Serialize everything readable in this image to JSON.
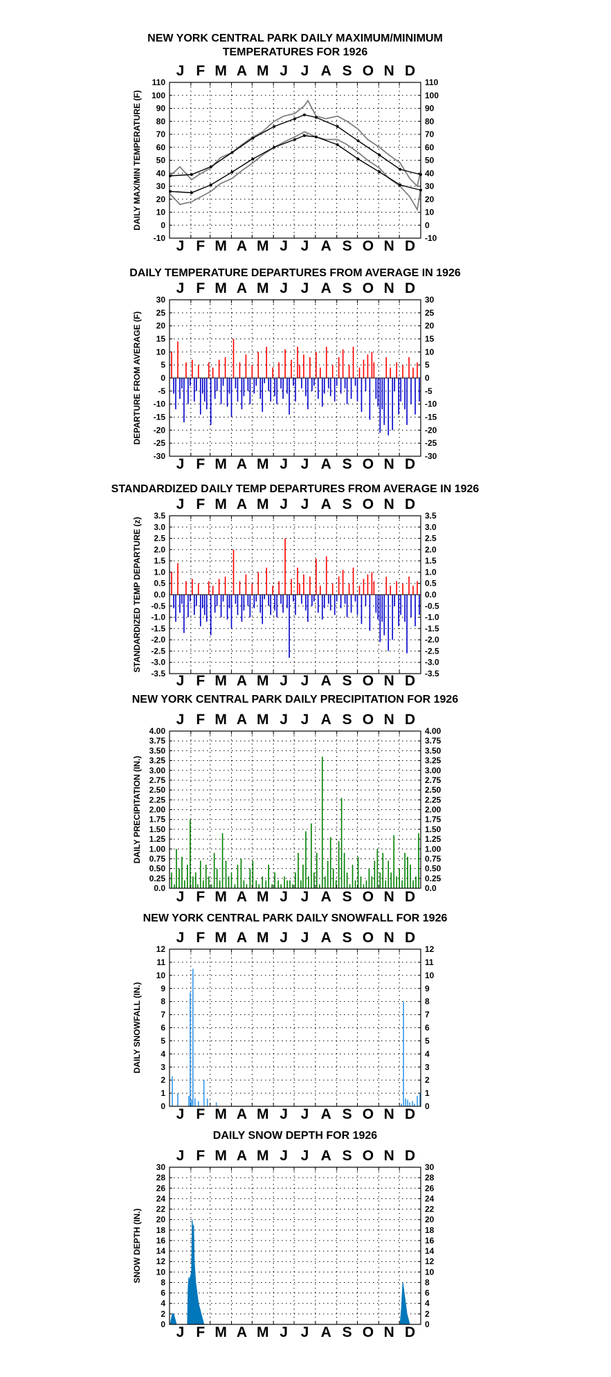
{
  "chart_data": [
    {
      "id": "temp",
      "type": "line",
      "title": [
        "NEW YORK CENTRAL PARK DAILY MAXIMUM/MINIMUM",
        "TEMPERATURES FOR 1926"
      ],
      "ylabel": "DAILY MAX/MIN TEMPERATURE (F)",
      "months": [
        "J",
        "F",
        "M",
        "A",
        "M",
        "J",
        "J",
        "A",
        "S",
        "O",
        "N",
        "D"
      ],
      "ylim": [
        -10,
        110
      ],
      "yticks": [
        -10,
        0,
        10,
        20,
        30,
        40,
        50,
        60,
        70,
        80,
        90,
        100,
        110
      ],
      "grid": true,
      "series": [
        {
          "role": "observed-max",
          "color": "#808080",
          "x": [
            1,
            15,
            32,
            46,
            60,
            74,
            91,
            105,
            121,
            135,
            152,
            166,
            182,
            196,
            201,
            213,
            227,
            244,
            258,
            274,
            288,
            305,
            319,
            335,
            349,
            360,
            365
          ],
          "values": [
            38,
            45,
            35,
            40,
            44,
            52,
            56,
            62,
            68,
            72,
            80,
            84,
            86,
            92,
            96,
            84,
            82,
            84,
            80,
            74,
            66,
            60,
            54,
            48,
            36,
            30,
            42
          ]
        },
        {
          "role": "observed-min",
          "color": "#808080",
          "x": [
            1,
            15,
            32,
            46,
            60,
            74,
            91,
            105,
            121,
            135,
            152,
            166,
            182,
            196,
            213,
            227,
            244,
            258,
            274,
            288,
            305,
            319,
            335,
            349,
            360,
            365
          ],
          "values": [
            24,
            16,
            18,
            22,
            26,
            32,
            36,
            42,
            48,
            54,
            60,
            64,
            68,
            72,
            68,
            66,
            66,
            62,
            56,
            50,
            44,
            36,
            30,
            22,
            12,
            28
          ]
        },
        {
          "role": "normal-max",
          "color": "#000000",
          "x": [
            1,
            32,
            60,
            91,
            121,
            152,
            182,
            196,
            213,
            244,
            274,
            305,
            335,
            365
          ],
          "values": [
            38,
            39,
            45,
            56,
            67,
            76,
            82,
            85,
            83,
            76,
            65,
            54,
            43,
            39
          ]
        },
        {
          "role": "normal-min",
          "color": "#000000",
          "x": [
            1,
            32,
            60,
            91,
            121,
            152,
            182,
            196,
            213,
            244,
            274,
            305,
            335,
            365
          ],
          "values": [
            26,
            25,
            31,
            41,
            51,
            60,
            66,
            69,
            68,
            62,
            51,
            41,
            31,
            27
          ]
        }
      ]
    },
    {
      "id": "dep",
      "type": "bar",
      "title": [
        "DAILY TEMPERATURE DEPARTURES FROM AVERAGE IN 1926"
      ],
      "ylabel": "DEPARTURE FROM AVERAGE (F)",
      "months": [
        "J",
        "F",
        "M",
        "A",
        "M",
        "J",
        "J",
        "A",
        "S",
        "O",
        "N",
        "D"
      ],
      "ylim": [
        -30,
        30
      ],
      "yticks": [
        -30,
        -25,
        -20,
        -15,
        -10,
        -5,
        0,
        5,
        10,
        15,
        20,
        25,
        30
      ],
      "grid": true,
      "colors": {
        "positive": "#ff0000",
        "negative": "#0000cc"
      },
      "x": [
        3,
        6,
        9,
        12,
        15,
        18,
        21,
        24,
        27,
        30,
        33,
        36,
        39,
        42,
        45,
        48,
        51,
        54,
        57,
        60,
        63,
        66,
        69,
        72,
        75,
        78,
        81,
        84,
        87,
        90,
        93,
        96,
        99,
        102,
        105,
        108,
        111,
        114,
        117,
        120,
        123,
        126,
        129,
        132,
        135,
        138,
        141,
        144,
        147,
        150,
        153,
        156,
        159,
        162,
        165,
        168,
        171,
        174,
        177,
        180,
        183,
        186,
        189,
        192,
        195,
        198,
        201,
        204,
        207,
        210,
        213,
        216,
        219,
        222,
        225,
        228,
        231,
        234,
        237,
        240,
        243,
        246,
        249,
        252,
        255,
        258,
        261,
        264,
        267,
        270,
        273,
        276,
        279,
        282,
        285,
        288,
        291,
        294,
        297,
        300,
        303,
        306,
        309,
        312,
        315,
        318,
        321,
        324,
        327,
        330,
        333,
        336,
        339,
        342,
        345,
        348,
        351,
        354,
        357,
        360,
        363
      ],
      "values": [
        10,
        -6,
        -12,
        14,
        -8,
        -4,
        -17,
        6,
        -10,
        -3,
        7,
        -9,
        -5,
        5,
        -14,
        -6,
        -9,
        -12,
        6,
        -18,
        4,
        -8,
        -5,
        7,
        -10,
        -3,
        8,
        -11,
        -6,
        -15,
        15,
        -4,
        -9,
        6,
        -12,
        -7,
        9,
        -5,
        -10,
        5,
        -6,
        -3,
        10,
        -8,
        -13,
        -2,
        12,
        -5,
        -9,
        4,
        -7,
        -10,
        6,
        -4,
        -8,
        11,
        -6,
        -14,
        7,
        -3,
        -9,
        12,
        5,
        -4,
        9,
        -7,
        -12,
        8,
        -5,
        -3,
        10,
        -8,
        4,
        -11,
        -6,
        12,
        -4,
        -7,
        5,
        -9,
        -3,
        8,
        -6,
        11,
        -4,
        -10,
        5,
        -8,
        12,
        -3,
        -9,
        4,
        -13,
        7,
        -5,
        9,
        -16,
        10,
        6,
        -8,
        -11,
        -21,
        -12,
        -18,
        8,
        -22,
        4,
        -20,
        -5,
        6,
        -14,
        -9,
        5,
        -12,
        -18,
        8,
        -10,
        4,
        -14,
        6,
        -9
      ]
    },
    {
      "id": "stddep",
      "type": "bar",
      "title": [
        "STANDARDIZED DAILY TEMP DEPARTURES FROM AVERAGE IN 1926"
      ],
      "ylabel": "STANDARDIZED TEMP DEPARTURE (z)",
      "months": [
        "J",
        "F",
        "M",
        "A",
        "M",
        "J",
        "J",
        "A",
        "S",
        "O",
        "N",
        "D"
      ],
      "ylim": [
        -3.5,
        3.5
      ],
      "yticks": [
        -3.5,
        -3.0,
        -2.5,
        -2.0,
        -1.5,
        -1.0,
        -0.5,
        0.0,
        0.5,
        1.0,
        1.5,
        2.0,
        2.5,
        3.0,
        3.5
      ],
      "ytick_labels": [
        "-3.5",
        "-3.0",
        "-2.5",
        "-2.0",
        "-1.5",
        "-1.0",
        "-0.5",
        "0.0",
        "0.5",
        "1.0",
        "1.5",
        "2.0",
        "2.5",
        "3.0",
        "3.5"
      ],
      "grid": true,
      "colors": {
        "positive": "#ff0000",
        "negative": "#0000cc"
      },
      "x": [
        3,
        6,
        9,
        12,
        15,
        18,
        21,
        24,
        27,
        30,
        33,
        36,
        39,
        42,
        45,
        48,
        51,
        54,
        57,
        60,
        63,
        66,
        69,
        72,
        75,
        78,
        81,
        84,
        87,
        90,
        93,
        96,
        99,
        102,
        105,
        108,
        111,
        114,
        117,
        120,
        123,
        126,
        129,
        132,
        135,
        138,
        141,
        144,
        147,
        150,
        153,
        156,
        159,
        162,
        165,
        168,
        171,
        174,
        177,
        180,
        183,
        186,
        189,
        192,
        195,
        198,
        201,
        204,
        207,
        210,
        213,
        216,
        219,
        222,
        225,
        228,
        231,
        234,
        237,
        240,
        243,
        246,
        249,
        252,
        255,
        258,
        261,
        264,
        267,
        270,
        273,
        276,
        279,
        282,
        285,
        288,
        291,
        294,
        297,
        300,
        303,
        306,
        309,
        312,
        315,
        318,
        321,
        324,
        327,
        330,
        333,
        336,
        339,
        342,
        345,
        348,
        351,
        354,
        357,
        360,
        363
      ],
      "values": [
        1.0,
        -0.6,
        -1.2,
        1.4,
        -0.8,
        -0.4,
        -1.7,
        0.6,
        -1.0,
        -0.3,
        0.7,
        -0.9,
        -0.5,
        0.5,
        -1.4,
        -0.6,
        -0.9,
        -1.2,
        0.6,
        -1.8,
        0.4,
        -0.8,
        -0.5,
        0.7,
        -1.0,
        -0.3,
        0.8,
        -1.1,
        -0.6,
        -1.5,
        2.0,
        -0.4,
        -0.9,
        0.6,
        -1.2,
        -0.7,
        0.9,
        -0.5,
        -1.0,
        0.5,
        -0.6,
        -0.3,
        1.0,
        -0.8,
        -1.3,
        -0.2,
        1.2,
        -0.5,
        -0.9,
        0.4,
        -0.7,
        -1.0,
        0.6,
        -0.4,
        -0.8,
        2.5,
        -0.6,
        -2.8,
        0.7,
        -0.3,
        -0.9,
        1.2,
        0.5,
        -0.4,
        0.9,
        -0.7,
        -1.2,
        0.8,
        -0.5,
        -0.3,
        1.6,
        -0.8,
        0.4,
        -1.1,
        -0.6,
        1.7,
        -0.4,
        -0.7,
        0.5,
        -0.9,
        -0.3,
        0.8,
        -0.6,
        1.1,
        -0.4,
        -1.0,
        0.5,
        -0.8,
        1.2,
        -0.3,
        -0.9,
        0.4,
        -1.3,
        0.7,
        -0.5,
        0.9,
        -1.6,
        1.0,
        0.6,
        -0.8,
        -1.1,
        -2.1,
        -1.2,
        -1.8,
        0.8,
        -2.5,
        0.4,
        -2.0,
        -0.5,
        0.6,
        -1.4,
        -0.9,
        0.5,
        -1.2,
        -2.6,
        0.8,
        -1.0,
        0.4,
        -1.4,
        0.6,
        -0.9
      ]
    },
    {
      "id": "precip",
      "type": "bar",
      "title": [
        "NEW YORK CENTRAL PARK DAILY PRECIPITATION FOR 1926"
      ],
      "ylabel": "DAILY PRECIPITATION (IN.)",
      "months": [
        "J",
        "F",
        "M",
        "A",
        "M",
        "J",
        "J",
        "A",
        "S",
        "O",
        "N",
        "D"
      ],
      "ylim": [
        0,
        4.0
      ],
      "yticks": [
        0,
        0.25,
        0.5,
        0.75,
        1.0,
        1.25,
        1.5,
        1.75,
        2.0,
        2.25,
        2.5,
        2.75,
        3.0,
        3.25,
        3.5,
        3.75,
        4.0
      ],
      "ytick_labels": [
        "0.0",
        "0.25",
        "0.50",
        "0.75",
        "1.00",
        "1.25",
        "1.50",
        "1.75",
        "2.00",
        "2.25",
        "2.50",
        "2.75",
        "3.00",
        "3.25",
        "3.50",
        "3.75",
        "4.00"
      ],
      "grid": true,
      "color": "#008000",
      "x": [
        3,
        7,
        10,
        14,
        18,
        22,
        26,
        30,
        34,
        38,
        41,
        45,
        49,
        53,
        57,
        61,
        65,
        69,
        73,
        77,
        82,
        86,
        90,
        95,
        99,
        104,
        108,
        112,
        117,
        121,
        126,
        130,
        135,
        140,
        144,
        149,
        153,
        158,
        162,
        167,
        171,
        175,
        179,
        183,
        187,
        191,
        194,
        198,
        202,
        206,
        210,
        214,
        218,
        222,
        226,
        230,
        234,
        238,
        242,
        246,
        250,
        254,
        258,
        262,
        266,
        270,
        274,
        278,
        282,
        286,
        290,
        294,
        298,
        302,
        306,
        310,
        314,
        318,
        322,
        326,
        330,
        334,
        338,
        342,
        346,
        350,
        354,
        358,
        362
      ],
      "values": [
        0.4,
        0.1,
        1.0,
        0.5,
        0.8,
        0.2,
        0.6,
        1.75,
        0.3,
        0.4,
        0.1,
        0.7,
        0.2,
        0.6,
        0.3,
        0.1,
        0.9,
        0.5,
        0.2,
        1.4,
        0.7,
        0.3,
        0.4,
        0.1,
        0.6,
        0.75,
        0.2,
        0.1,
        0.5,
        0.7,
        0.2,
        0.1,
        0.3,
        0.2,
        0.6,
        0.1,
        0.4,
        0.2,
        0.1,
        0.3,
        0.2,
        0.2,
        0.1,
        0.4,
        0.9,
        0.2,
        0.6,
        1.45,
        0.3,
        1.65,
        0.4,
        0.9,
        0.1,
        3.35,
        0.3,
        0.7,
        1.3,
        0.5,
        0.2,
        1.2,
        2.3,
        0.9,
        0.4,
        0.1,
        0.6,
        0.2,
        0.8,
        0.3,
        0.1,
        0.2,
        0.5,
        0.3,
        0.7,
        1.0,
        0.4,
        0.9,
        0.2,
        0.7,
        0.4,
        1.35,
        0.3,
        0.5,
        0.2,
        0.9,
        0.8,
        0.6,
        0.2,
        0.3,
        1.4
      ]
    },
    {
      "id": "snow",
      "type": "bar",
      "title": [
        "NEW YORK CENTRAL PARK DAILY SNOWFALL FOR 1926"
      ],
      "ylabel": "DAILY SNOWFALL (IN.)",
      "months": [
        "J",
        "F",
        "M",
        "A",
        "M",
        "J",
        "J",
        "A",
        "S",
        "O",
        "N",
        "D"
      ],
      "ylim": [
        0,
        12
      ],
      "yticks": [
        0,
        1,
        2,
        3,
        4,
        5,
        6,
        7,
        8,
        9,
        10,
        11,
        12
      ],
      "grid": true,
      "color": "#3399ee",
      "x": [
        4,
        12,
        28,
        30,
        32,
        34,
        37,
        42,
        50,
        55,
        68,
        337,
        340,
        343,
        346,
        349,
        353,
        356,
        360,
        364
      ],
      "values": [
        2.3,
        1.0,
        0.8,
        8.7,
        0.5,
        10.5,
        0.6,
        0.4,
        2.0,
        0.6,
        0.3,
        0.2,
        8.0,
        0.6,
        0.5,
        0.3,
        0.4,
        0.2,
        0.8,
        1.0
      ]
    },
    {
      "id": "depth",
      "type": "area",
      "title": [
        "DAILY SNOW DEPTH FOR 1926"
      ],
      "ylabel": "SNOW DEPTH (IN.)",
      "months": [
        "J",
        "F",
        "M",
        "A",
        "M",
        "J",
        "J",
        "A",
        "S",
        "O",
        "N",
        "D"
      ],
      "ylim": [
        0,
        30
      ],
      "yticks": [
        0,
        2,
        4,
        6,
        8,
        10,
        12,
        14,
        16,
        18,
        20,
        22,
        24,
        26,
        28,
        30
      ],
      "grid": true,
      "color": "#0077bb",
      "x": [
        1,
        4,
        6,
        8,
        10,
        26,
        27,
        28,
        29,
        30,
        32,
        33,
        34,
        35,
        36,
        37,
        38,
        39,
        40,
        42,
        44,
        46,
        48,
        50,
        60,
        335,
        337,
        339,
        341,
        343,
        345,
        347,
        349,
        351,
        365
      ],
      "values": [
        0,
        2,
        2,
        1,
        0,
        0,
        7,
        9,
        8,
        9,
        10,
        20,
        18,
        19,
        12,
        10,
        8,
        7,
        6,
        4,
        3,
        2,
        1,
        0,
        0,
        0,
        3,
        8,
        6,
        4,
        2,
        1,
        0,
        0,
        0
      ]
    }
  ]
}
